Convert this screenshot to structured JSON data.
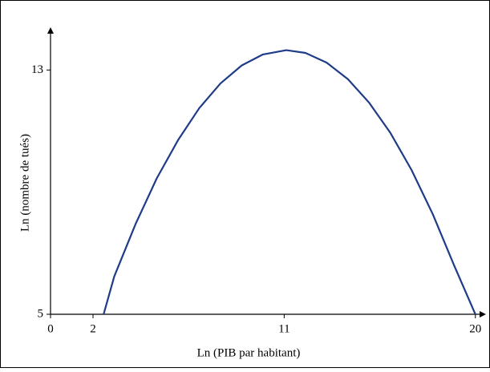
{
  "chart_data": {
    "type": "line",
    "xlabel": "Ln (PIB par habitant)",
    "ylabel": "Ln (nombre de tués)",
    "x": [
      2.5,
      3,
      4,
      5,
      6,
      7,
      8,
      9,
      10,
      11.1,
      12,
      13,
      14,
      15,
      16,
      17,
      18,
      19,
      20
    ],
    "series": [
      {
        "color": "#1f3c88",
        "values": [
          5,
          6.24,
          7.95,
          9.45,
          10.7,
          11.75,
          12.56,
          13.15,
          13.51,
          13.65,
          13.56,
          13.24,
          12.7,
          11.93,
          10.94,
          9.72,
          8.27,
          6.6,
          5
        ]
      }
    ],
    "xlim": [
      0,
      20.5
    ],
    "ylim": [
      5,
      14.4
    ],
    "xticks": [
      0,
      2,
      11,
      20
    ],
    "yticks": [
      5,
      13
    ]
  }
}
